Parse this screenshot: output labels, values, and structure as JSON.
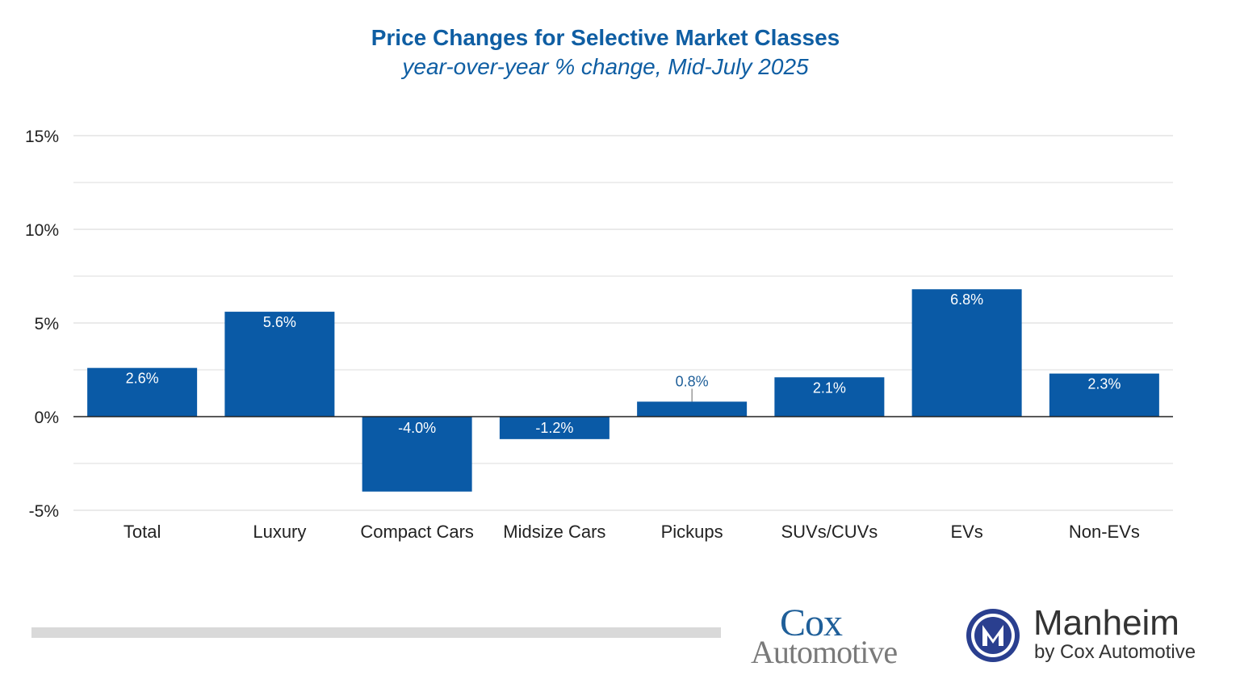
{
  "chart_data": {
    "type": "bar",
    "title": "Price Changes for Selective Market Classes",
    "subtitle": "year-over-year % change, Mid-July 2025",
    "categories": [
      "Total",
      "Luxury",
      "Compact Cars",
      "Midsize Cars",
      "Pickups",
      "SUVs/CUVs",
      "EVs",
      "Non-EVs"
    ],
    "values": [
      2.6,
      5.6,
      -4.0,
      -1.2,
      0.8,
      2.1,
      6.8,
      2.3
    ],
    "data_labels": [
      "2.6%",
      "5.6%",
      "-4.0%",
      "-1.2%",
      "0.8%",
      "2.1%",
      "6.8%",
      "2.3%"
    ],
    "xlabel": "",
    "ylabel": "",
    "ylim": [
      -5,
      15
    ],
    "yticks": [
      -5,
      0,
      5,
      10,
      15
    ],
    "ytick_labels": [
      "-5%",
      "0%",
      "5%",
      "10%",
      "15%"
    ],
    "minor_gridlines": [
      -2.5,
      2.5,
      7.5,
      12.5
    ],
    "grid": true,
    "legend": "none",
    "bar_color": "#0a5aa6"
  },
  "branding": {
    "cox_line1": "Cox",
    "cox_line2": "Automotive",
    "manheim_name": "Manheim",
    "manheim_tagline": "by Cox Automotive",
    "cox_blue": "#1f5f99",
    "cox_gray": "#7a7a7a"
  }
}
